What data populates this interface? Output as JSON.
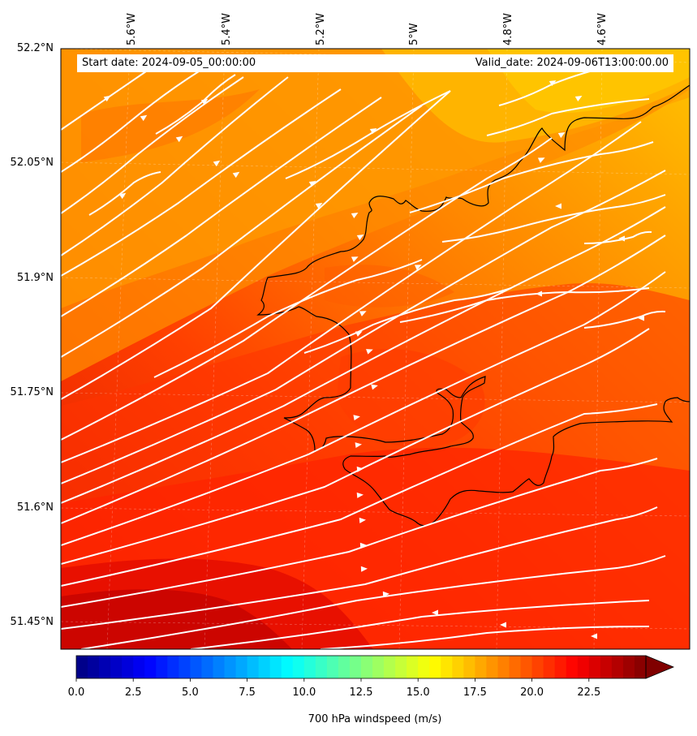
{
  "map": {
    "start_date": "Start date: 2024-09-05_00:00:00",
    "valid_date": "Valid_date: 2024-09-06T13:00:00.00",
    "lon_labels": [
      "5.6°W",
      "5.4°W",
      "5.2°W",
      "5°W",
      "4.8°W",
      "4.6°W"
    ],
    "lat_labels": [
      "52.2°N",
      "52.05°N",
      "51.9°N",
      "51.75°N",
      "51.6°N",
      "51.45°N"
    ],
    "field_colors": {
      "high": "#ffc400",
      "mid": "#ff8000",
      "low": "#ff2a00",
      "max": "#c40000"
    },
    "streamline_color": "#ffffff",
    "coastline_color": "#000000"
  },
  "colorbar": {
    "label": "700 hPa windspeed (m/s)",
    "ticks": [
      "0.0",
      "2.5",
      "5.0",
      "7.5",
      "10.0",
      "12.5",
      "15.0",
      "17.5",
      "20.0",
      "22.5"
    ],
    "tick_values": [
      0,
      2.5,
      5,
      7.5,
      10,
      12.5,
      15,
      17.5,
      20,
      22.5
    ],
    "range": [
      0,
      25
    ],
    "extend": "max",
    "colormap": "jet"
  }
}
